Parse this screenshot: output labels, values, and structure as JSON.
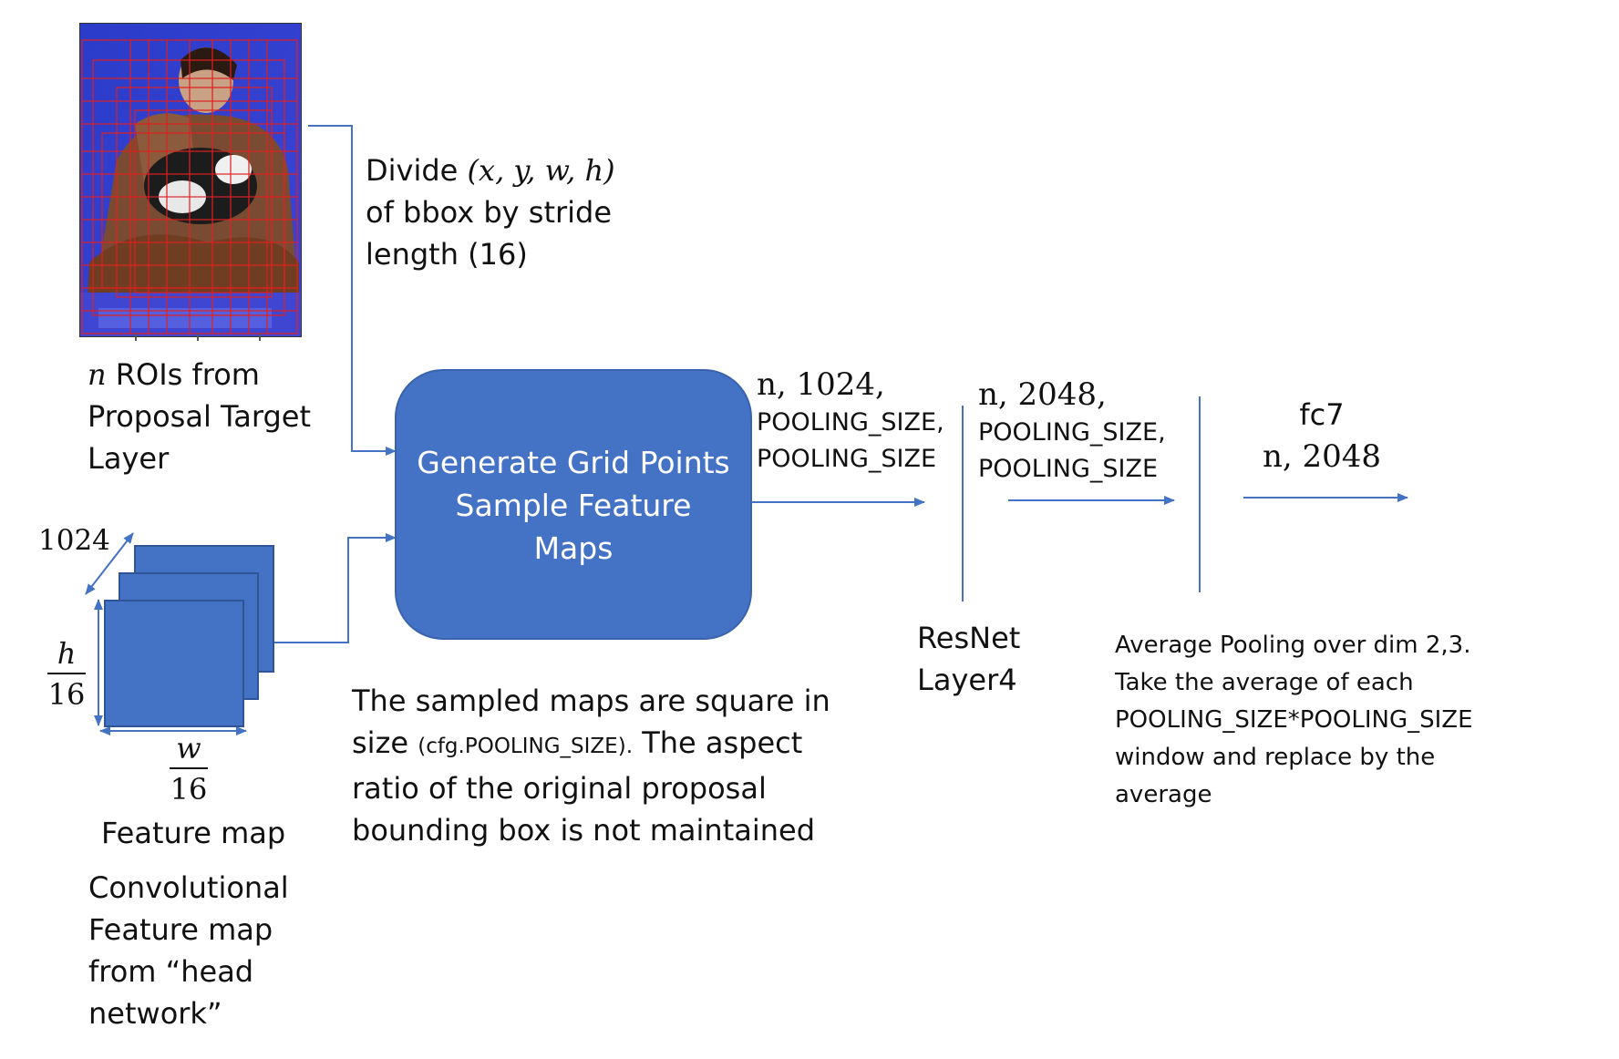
{
  "roi_caption": {
    "math": "n",
    "line1": " ROIs from",
    "line2": "Proposal Target",
    "line3": "Layer"
  },
  "divide_note": {
    "line1_prefix": "Divide ",
    "line1_math": "(x, y, w, h)",
    "line2": "of bbox by stride",
    "line3": "length (16)"
  },
  "central_box": {
    "line1": "Generate Grid Points",
    "line2": "Sample Feature",
    "line3": "Maps"
  },
  "feature_map": {
    "depth_label": "1024",
    "h_num": "h",
    "h_den": "16",
    "w_num": "w",
    "w_den": "16",
    "label": "Feature map"
  },
  "conv_caption": {
    "line1": "Convolutional",
    "line2": "Feature map",
    "line3": "from “head",
    "line4": "network”"
  },
  "sampled_note": {
    "line1": "The sampled maps are square in",
    "line2_prefix": "size ",
    "line2_small": "(cfg.POOLING_SIZE).",
    "line2_suffix": " The aspect",
    "line3": "ratio of the original proposal",
    "line4": "bounding box is not maintained"
  },
  "shape1": {
    "math": "n, 1024,",
    "line2": "POOLING_SIZE,",
    "line3": "POOLING_SIZE"
  },
  "resnet": {
    "line1": "ResNet",
    "line2": "Layer4"
  },
  "shape2": {
    "math": "n, 2048,",
    "line2": "POOLING_SIZE,",
    "line3": "POOLING_SIZE"
  },
  "avg_note": {
    "line1": "Average Pooling over dim 2,3.",
    "line2": "Take the average of each",
    "line3": "POOLING_SIZE*POOLING_SIZE",
    "line4": "window and replace by the",
    "line5": "average"
  },
  "fc7": {
    "label": "fc7",
    "math": "n, 2048"
  },
  "colors": {
    "accent": "#4472c4",
    "grid": "#e02020",
    "text": "#111111"
  }
}
